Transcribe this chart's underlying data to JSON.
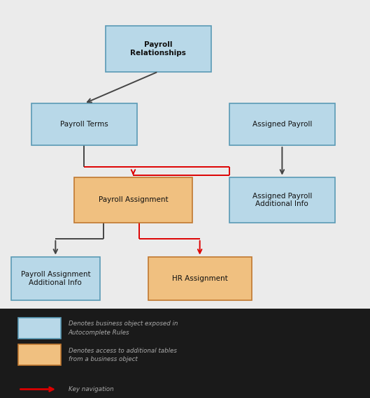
{
  "bg_color": "#ebebeb",
  "legend_bg": "#1a1a1a",
  "blue_box_color": "#b8d8e8",
  "blue_box_edge": "#5a9ab5",
  "orange_box_color": "#f0c080",
  "orange_box_edge": "#c07830",
  "arrow_gray": "#444444",
  "arrow_red": "#dd0000",
  "boxes": {
    "payroll_relationships": [
      0.285,
      0.82,
      0.285,
      0.115
    ],
    "payroll_terms": [
      0.085,
      0.635,
      0.285,
      0.105
    ],
    "assigned_payroll": [
      0.62,
      0.635,
      0.285,
      0.105
    ],
    "payroll_assignment": [
      0.2,
      0.44,
      0.32,
      0.115
    ],
    "assigned_payroll_info": [
      0.62,
      0.44,
      0.285,
      0.115
    ],
    "payroll_assignment_info": [
      0.03,
      0.245,
      0.24,
      0.11
    ],
    "hr_assignment": [
      0.4,
      0.245,
      0.28,
      0.11
    ]
  },
  "labels": {
    "payroll_relationships": [
      "Payroll\nRelationships",
      "blue",
      true
    ],
    "payroll_terms": [
      "Payroll Terms",
      "blue",
      false
    ],
    "assigned_payroll": [
      "Assigned Payroll",
      "blue",
      false
    ],
    "payroll_assignment": [
      "Payroll Assignment",
      "orange",
      false
    ],
    "assigned_payroll_info": [
      "Assigned Payroll\nAdditional Info",
      "blue",
      false
    ],
    "payroll_assignment_info": [
      "Payroll Assignment\nAdditional Info",
      "blue",
      false
    ],
    "hr_assignment": [
      "HR Assignment",
      "orange",
      false
    ]
  },
  "legend_items": [
    {
      "color": "blue",
      "line1": "Denotes business object exposed in",
      "line2": "Autocomplete Rules"
    },
    {
      "color": "orange",
      "line1": "Denotes access to additional tables",
      "line2": "from a business object"
    }
  ],
  "legend_arrow_text": "Key navigation",
  "figsize": [
    5.29,
    5.7
  ],
  "dpi": 100
}
